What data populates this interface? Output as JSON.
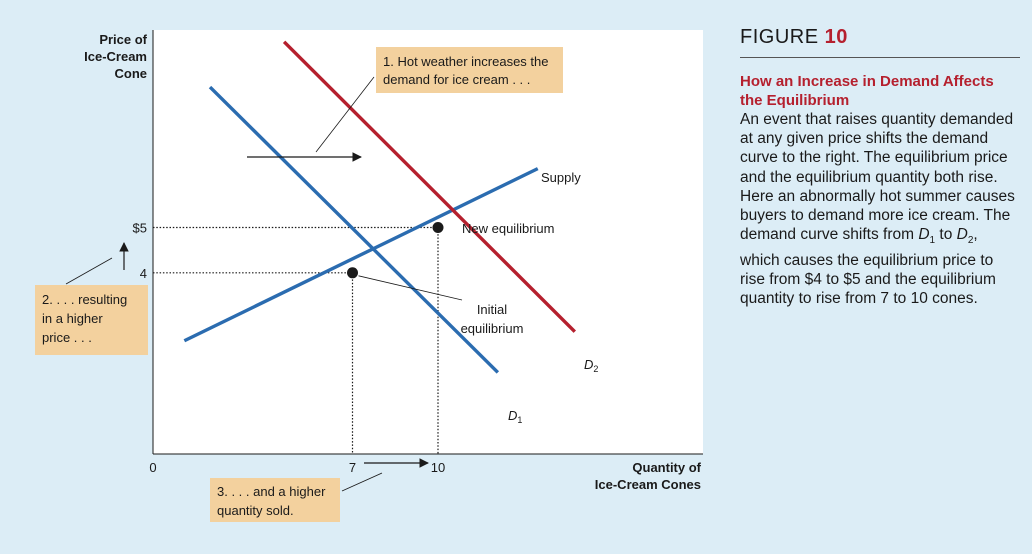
{
  "figure": {
    "label": "FIGURE",
    "number": "10",
    "subtitle": "How an Increase in Demand Affects the Equilibrium",
    "body": [
      {
        "t": "An event that raises quantity demanded at any given price shifts the demand curve to the right. The equilibrium price and the equilibrium quantity both rise. Here an abnormally hot summer causes buyers to demand more ice cream. The demand curve shifts from "
      },
      {
        "t": "D",
        "i": true
      },
      {
        "t": "1",
        "sub": true
      },
      {
        "t": " to "
      },
      {
        "t": "D",
        "i": true
      },
      {
        "t": "2",
        "sub": true
      },
      {
        "t": ", which causes the equilibrium price to rise from $4 to $5 and the equilibrium quantity to rise from 7 to 10 cones."
      }
    ]
  },
  "colors": {
    "background": "#dcedf6",
    "plot": "#ffffff",
    "supply_demand1": "#2b6cb0",
    "demand2": "#b5202e",
    "callout_fill": "#f3d19e",
    "accent": "#b5202e"
  },
  "chart_data": {
    "type": "line",
    "ylabel": [
      "Price of",
      "Ice-Cream",
      "Cone"
    ],
    "xlabel": [
      "Quantity of",
      "Ice-Cream Cones"
    ],
    "origin_label": "0",
    "x_ticks": [
      {
        "value": 7,
        "label": "7"
      },
      {
        "value": 10,
        "label": "10"
      }
    ],
    "y_ticks": [
      {
        "value": 4,
        "label": "4"
      },
      {
        "value": 5,
        "label": "$5"
      }
    ],
    "series": [
      {
        "name": "Supply",
        "color": "#2b6cb0",
        "points": [
          [
            1.1,
            2.5
          ],
          [
            13.5,
            6.3
          ]
        ]
      },
      {
        "name": "D",
        "sub": "1",
        "color": "#2b6cb0",
        "points": [
          [
            2,
            8.1
          ],
          [
            12.1,
            1.8
          ]
        ]
      },
      {
        "name": "D",
        "sub": "2",
        "color": "#b5202e",
        "points": [
          [
            4.6,
            9.1
          ],
          [
            14.8,
            2.7
          ]
        ]
      }
    ],
    "equilibria": [
      {
        "x": 7,
        "y": 4,
        "label": [
          "Initial",
          "equilibrium"
        ]
      },
      {
        "x": 10,
        "y": 5,
        "label": [
          "New equilibrium"
        ]
      }
    ],
    "callouts": [
      {
        "id": "demand",
        "lines": [
          "1. Hot weather increases the",
          "demand for ice cream . . ."
        ]
      },
      {
        "id": "price",
        "lines": [
          "2. . . . resulting",
          "in a higher",
          "price . . ."
        ]
      },
      {
        "id": "quantity",
        "lines": [
          "3. . . . and a higher",
          "quantity sold."
        ]
      }
    ]
  }
}
